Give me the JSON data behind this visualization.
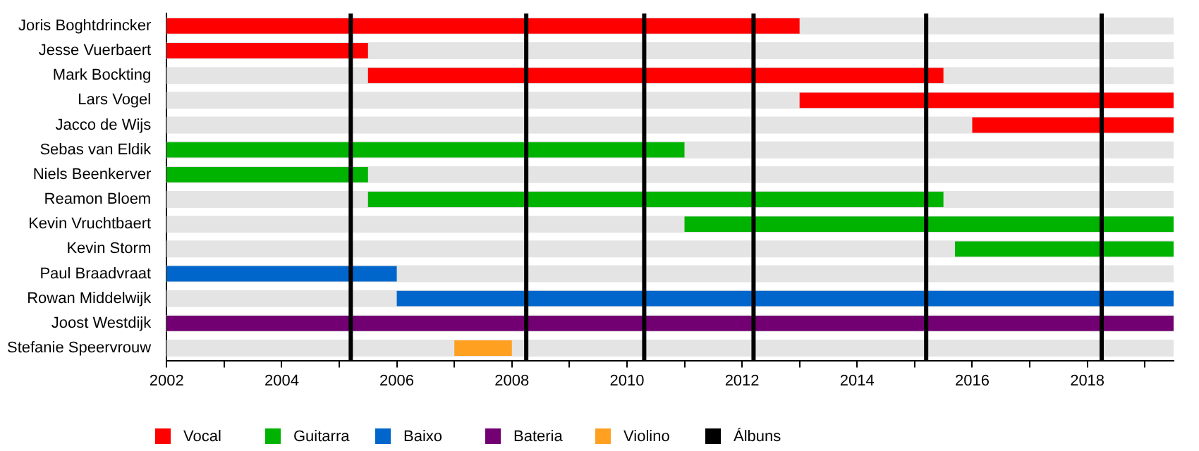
{
  "chart_data": {
    "type": "bar",
    "orientation": "horizontal",
    "categories": [
      "Joris Boghtdrincker",
      "Jesse Vuerbaert",
      "Mark Bockting",
      "Lars Vogel",
      "Jacco de Wijs",
      "Sebas van Eldik",
      "Niels Beenkerver",
      "Reamon Bloem",
      "Kevin Vruchtbaert",
      "Kevin Storm",
      "Paul Braadvraat",
      "Rowan Middelwijk",
      "Joost Westdijk",
      "Stefanie Speervrouw"
    ],
    "series": [
      {
        "name": "Vocal",
        "color": "#ff0000",
        "base": [
          2002,
          2002,
          2005.5,
          2013,
          2016,
          null,
          null,
          null,
          null,
          null,
          null,
          null,
          null,
          null
        ],
        "values": [
          11,
          3.5,
          10,
          6.5,
          3.5,
          null,
          null,
          null,
          null,
          null,
          null,
          null,
          null,
          null
        ]
      },
      {
        "name": "Guitarra",
        "color": "#00b300",
        "base": [
          null,
          null,
          null,
          null,
          null,
          2002,
          2002,
          2005.5,
          2011,
          2015.7,
          null,
          null,
          null,
          null
        ],
        "values": [
          null,
          null,
          null,
          null,
          null,
          9,
          3.5,
          10,
          8.5,
          3.8,
          null,
          null,
          null,
          null
        ]
      },
      {
        "name": "Baixo",
        "color": "#0066cc",
        "base": [
          null,
          null,
          null,
          null,
          null,
          null,
          null,
          null,
          null,
          null,
          2002,
          2006,
          null,
          null
        ],
        "values": [
          null,
          null,
          null,
          null,
          null,
          null,
          null,
          null,
          null,
          null,
          4,
          13.5,
          null,
          null
        ]
      },
      {
        "name": "Bateria",
        "color": "#730073",
        "base": [
          null,
          null,
          null,
          null,
          null,
          null,
          null,
          null,
          null,
          null,
          null,
          null,
          2002,
          null
        ],
        "values": [
          null,
          null,
          null,
          null,
          null,
          null,
          null,
          null,
          null,
          null,
          null,
          null,
          17.5,
          null
        ]
      },
      {
        "name": "Violino",
        "color": "#ffa020",
        "base": [
          null,
          null,
          null,
          null,
          null,
          null,
          null,
          null,
          null,
          null,
          null,
          null,
          null,
          2007
        ],
        "values": [
          null,
          null,
          null,
          null,
          null,
          null,
          null,
          null,
          null,
          null,
          null,
          null,
          null,
          1
        ]
      }
    ],
    "ref_lines": [
      {
        "axis": "x",
        "value": 2005.2,
        "label": "Álbuns",
        "color": "#000000"
      },
      {
        "axis": "x",
        "value": 2008.25,
        "color": "#000000"
      },
      {
        "axis": "x",
        "value": 2010.3,
        "color": "#000000"
      },
      {
        "axis": "x",
        "value": 2012.2,
        "color": "#000000"
      },
      {
        "axis": "x",
        "value": 2015.2,
        "color": "#000000"
      },
      {
        "axis": "x",
        "value": 2018.25,
        "color": "#000000"
      }
    ],
    "xlim": [
      2002,
      2019.5
    ],
    "xticks": [
      2002,
      {
        "value": 2003,
        "label": null
      },
      2004,
      {
        "value": 2005,
        "label": null
      },
      2006,
      {
        "value": 2007,
        "label": null
      },
      2008,
      {
        "value": 2009,
        "label": null
      },
      2010,
      {
        "value": 2011,
        "label": null
      },
      2012,
      {
        "value": 2013,
        "label": null
      },
      2014,
      {
        "value": 2015,
        "label": null
      },
      2016,
      {
        "value": 2017,
        "label": null
      },
      2018,
      {
        "value": 2019,
        "label": null
      }
    ],
    "legend": "bottom"
  }
}
